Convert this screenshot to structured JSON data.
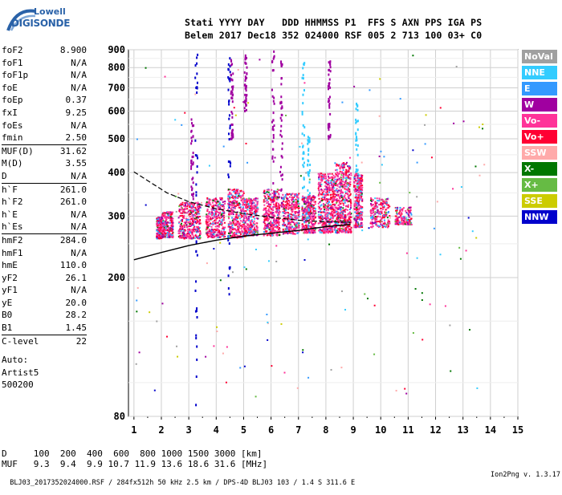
{
  "logo": {
    "line1": "Lowell",
    "line2": "DIGISONDE"
  },
  "header": {
    "line1": "Stati YYYY DAY   DDD HHMMSS P1  FFS S AXN PPS IGA PS",
    "line2": "Belem 2017 Dec18 352 024000 RSF 005 2 713 100 03+ C0"
  },
  "params_a": [
    {
      "k": "foF2",
      "v": "8.900"
    },
    {
      "k": "foF1",
      "v": "N/A"
    },
    {
      "k": "foF1p",
      "v": "N/A"
    },
    {
      "k": "foE",
      "v": "N/A"
    },
    {
      "k": "foEp",
      "v": "0.37"
    },
    {
      "k": "fxI",
      "v": "9.25"
    },
    {
      "k": "foEs",
      "v": "N/A"
    },
    {
      "k": "fmin",
      "v": "2.50"
    }
  ],
  "params_b": [
    {
      "k": "MUF(D)",
      "v": "31.62"
    },
    {
      "k": "M(D)",
      "v": "3.55"
    },
    {
      "k": "D",
      "v": "N/A"
    }
  ],
  "params_c": [
    {
      "k": "h`F",
      "v": "261.0"
    },
    {
      "k": "h`F2",
      "v": "261.0"
    },
    {
      "k": "h`E",
      "v": "N/A"
    },
    {
      "k": "h`Es",
      "v": "N/A"
    }
  ],
  "params_d": [
    {
      "k": "hmF2",
      "v": "284.0"
    },
    {
      "k": "hmF1",
      "v": "N/A"
    },
    {
      "k": "hmE",
      "v": "110.0"
    },
    {
      "k": "yF2",
      "v": "26.1"
    },
    {
      "k": "yF1",
      "v": "N/A"
    },
    {
      "k": "yE",
      "v": "20.0"
    },
    {
      "k": "B0",
      "v": "28.2"
    },
    {
      "k": "B1",
      "v": "1.45"
    }
  ],
  "params_e": [
    {
      "k": "C-level",
      "v": "22"
    }
  ],
  "auto": [
    "Auto:",
    "Artist5",
    "500200"
  ],
  "legend": [
    {
      "label": "NoVal",
      "color": "#a0a0a0"
    },
    {
      "label": "NNE",
      "color": "#33ccff"
    },
    {
      "label": "E",
      "color": "#3399ff"
    },
    {
      "label": "W",
      "color": "#a000a0"
    },
    {
      "label": "Vo-",
      "color": "#ff3399"
    },
    {
      "label": "Vo+",
      "color": "#ff0033"
    },
    {
      "label": "SSW",
      "color": "#ffaaaa"
    },
    {
      "label": "X-",
      "color": "#007700"
    },
    {
      "label": "X+",
      "color": "#66bb44"
    },
    {
      "label": "SSE",
      "color": "#cccc00"
    },
    {
      "label": "NNW",
      "color": "#0000cc"
    }
  ],
  "muf_table": {
    "line1": "D     100  200  400  600  800 1000 1500 3000 [km]",
    "line2": "MUF   9.3  9.4  9.9 10.7 11.9 13.6 18.6 31.6 [MHz]"
  },
  "footer": {
    "left": "BLJ03_2017352024000.RSF / 284fx512h 50 kHz 2.5 km / DPS-4D BLJ03 103 / 1.4 S 311.6 E",
    "right": "Ion2Png v. 1.3.17"
  },
  "chart_data": {
    "type": "scatter",
    "title": "",
    "xlabel": "",
    "ylabel": "",
    "xlim": [
      0.8,
      15
    ],
    "ylim": [
      80,
      900
    ],
    "xticks": [
      1,
      2,
      3,
      4,
      5,
      6,
      7,
      8,
      9,
      10,
      11,
      12,
      13,
      14,
      15
    ],
    "yticks": [
      80,
      200,
      300,
      400,
      500,
      600,
      700,
      800,
      900
    ],
    "ytick_labels": [
      "80",
      "200",
      "300",
      "400",
      "500",
      "600",
      "700",
      "800",
      "900"
    ],
    "grid": true,
    "scale_y": "log",
    "profile_solid": [
      [
        1.0,
        225
      ],
      [
        2.0,
        236
      ],
      [
        3.0,
        247
      ],
      [
        4.0,
        256
      ],
      [
        5.0,
        263
      ],
      [
        6.0,
        268
      ],
      [
        7.0,
        273
      ],
      [
        8.0,
        280
      ],
      [
        8.9,
        284
      ]
    ],
    "profile_dashed": [
      [
        1.0,
        402
      ],
      [
        1.6,
        375
      ],
      [
        2.2,
        350
      ],
      [
        3.0,
        330
      ],
      [
        4.0,
        315
      ],
      [
        5.0,
        305
      ],
      [
        6.0,
        298
      ],
      [
        7.0,
        292
      ],
      [
        8.0,
        289
      ],
      [
        8.9,
        288
      ]
    ],
    "trace_groups": [
      {
        "x": 1.8,
        "x2": 2.0,
        "ymin": 260,
        "ymax": 300,
        "weight": 1.0
      },
      {
        "x": 2.0,
        "x2": 2.4,
        "ymin": 262,
        "ymax": 310,
        "weight": 1.2
      },
      {
        "x": 2.6,
        "x2": 3.4,
        "ymin": 260,
        "ymax": 330,
        "weight": 2.0
      },
      {
        "x": 3.6,
        "x2": 4.3,
        "ymin": 262,
        "ymax": 340,
        "weight": 1.8
      },
      {
        "x": 4.4,
        "x2": 5.0,
        "ymin": 262,
        "ymax": 360,
        "weight": 2.0
      },
      {
        "x": 5.0,
        "x2": 5.5,
        "ymin": 265,
        "ymax": 340,
        "weight": 1.6
      },
      {
        "x": 5.7,
        "x2": 6.3,
        "ymin": 265,
        "ymax": 360,
        "weight": 1.8
      },
      {
        "x": 6.4,
        "x2": 7.0,
        "ymin": 268,
        "ymax": 350,
        "weight": 1.8
      },
      {
        "x": 7.1,
        "x2": 7.6,
        "ymin": 270,
        "ymax": 345,
        "weight": 1.6
      },
      {
        "x": 7.7,
        "x2": 8.3,
        "ymin": 270,
        "ymax": 400,
        "weight": 2.4
      },
      {
        "x": 8.3,
        "x2": 8.9,
        "ymin": 270,
        "ymax": 430,
        "weight": 2.8
      },
      {
        "x": 9.0,
        "x2": 9.3,
        "ymin": 280,
        "ymax": 400,
        "weight": 1.4
      },
      {
        "x": 9.6,
        "x2": 10.3,
        "ymin": 280,
        "ymax": 340,
        "weight": 1.2
      },
      {
        "x": 10.5,
        "x2": 11.1,
        "ymin": 285,
        "ymax": 320,
        "weight": 0.8
      }
    ],
    "columns": [
      {
        "x": 3.1,
        "ymin": 270,
        "ymax": 600,
        "color": "#a000a0"
      },
      {
        "x": 3.25,
        "ymin": 85,
        "ymax": 900,
        "color": "#0000cc"
      },
      {
        "x": 4.45,
        "ymin": 180,
        "ymax": 900,
        "color": "#0000cc"
      },
      {
        "x": 4.55,
        "ymin": 500,
        "ymax": 900,
        "color": "#a000a0"
      },
      {
        "x": 5.05,
        "ymin": 600,
        "ymax": 880,
        "color": "#a000a0"
      },
      {
        "x": 6.05,
        "ymin": 270,
        "ymax": 900,
        "color": "#a000a0"
      },
      {
        "x": 6.35,
        "ymin": 320,
        "ymax": 900,
        "color": "#a000a0"
      },
      {
        "x": 7.15,
        "ymin": 280,
        "ymax": 860,
        "color": "#33ccff"
      },
      {
        "x": 7.35,
        "ymin": 300,
        "ymax": 520,
        "color": "#33ccff"
      },
      {
        "x": 8.1,
        "ymin": 500,
        "ymax": 870,
        "color": "#a000a0"
      },
      {
        "x": 9.1,
        "ymin": 300,
        "ymax": 640,
        "color": "#33ccff"
      }
    ],
    "series_colors": [
      "#ff3399",
      "#ff0033",
      "#a000a0",
      "#3399ff",
      "#33ccff",
      "#007700",
      "#66bb44",
      "#ffaaaa",
      "#cccc00",
      "#0000cc",
      "#a0a0a0"
    ]
  }
}
